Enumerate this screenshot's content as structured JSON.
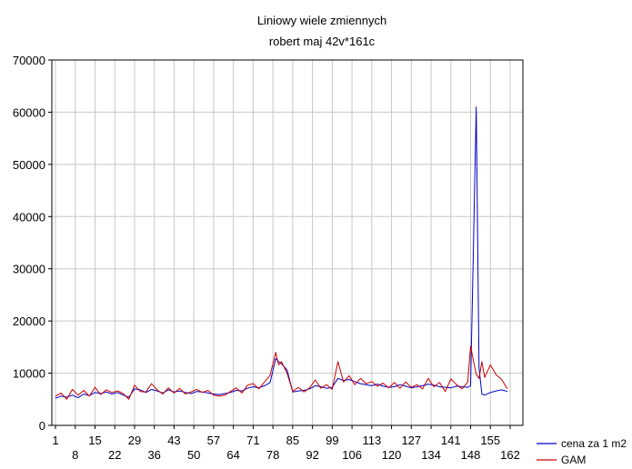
{
  "chart_data": {
    "type": "line",
    "title": "Liniowy   wiele zmiennych",
    "subtitle": "robert  maj 42v*161c",
    "ylim": [
      0,
      70000
    ],
    "y_ticks": [
      0,
      10000,
      20000,
      30000,
      40000,
      50000,
      60000,
      70000
    ],
    "x_range": [
      1,
      162
    ],
    "x_ticks_upper": [
      1,
      15,
      29,
      43,
      57,
      71,
      85,
      99,
      113,
      127,
      141,
      155
    ],
    "x_ticks_lower": [
      8,
      22,
      36,
      50,
      64,
      78,
      92,
      106,
      120,
      134,
      148,
      162
    ],
    "x_tick_labels_upper": [
      "1",
      "15",
      "29",
      "43",
      "57",
      "71",
      "85",
      "99",
      "113",
      "127",
      "141",
      "155"
    ],
    "x_tick_labels_lower": [
      "8",
      "22",
      "36",
      "50",
      "64",
      "78",
      "92",
      "106",
      "120",
      "134",
      "148",
      "162"
    ],
    "y_tick_labels": [
      "0",
      "10000",
      "20000",
      "30000",
      "40000",
      "50000",
      "60000",
      "70000"
    ],
    "grid": true,
    "legend_placement": "bottom-right",
    "colors": {
      "series_1": "#0000c8",
      "series_2": "#c80000",
      "grid": "#c8c8c8",
      "frame": "#000000"
    },
    "series": [
      {
        "name": "cena za 1 m2",
        "x": [
          1,
          3,
          5,
          7,
          9,
          11,
          13,
          15,
          17,
          19,
          21,
          23,
          25,
          27,
          29,
          31,
          33,
          35,
          37,
          39,
          41,
          43,
          45,
          47,
          49,
          51,
          53,
          55,
          57,
          59,
          61,
          63,
          65,
          67,
          69,
          71,
          73,
          75,
          77,
          79,
          80,
          81,
          83,
          85,
          87,
          89,
          91,
          93,
          95,
          97,
          99,
          101,
          103,
          105,
          107,
          109,
          111,
          113,
          115,
          117,
          119,
          121,
          123,
          125,
          127,
          129,
          131,
          133,
          135,
          137,
          139,
          141,
          143,
          145,
          147,
          148,
          149,
          150,
          151,
          152,
          153,
          155,
          157,
          159,
          161
        ],
        "values": [
          5200,
          5600,
          5400,
          5800,
          5300,
          6000,
          5700,
          6300,
          6100,
          6400,
          6000,
          6300,
          5800,
          5400,
          7000,
          6800,
          6300,
          6900,
          6600,
          6200,
          6800,
          6400,
          6600,
          6300,
          6100,
          6500,
          6400,
          6200,
          6000,
          5900,
          6100,
          6300,
          6700,
          6600,
          7100,
          7400,
          7200,
          7600,
          8200,
          12800,
          12200,
          11800,
          10600,
          6400,
          6600,
          6700,
          7000,
          7600,
          7400,
          7100,
          7300,
          9000,
          8600,
          8800,
          8400,
          8000,
          7800,
          7600,
          7900,
          7500,
          7300,
          7400,
          7800,
          7500,
          7200,
          7400,
          7600,
          7900,
          7700,
          7400,
          7300,
          7200,
          7500,
          7400,
          7300,
          7600,
          34000,
          61000,
          11000,
          6000,
          5800,
          6300,
          6600,
          6800,
          6500
        ],
        "visible_points": 85
      },
      {
        "name": "GAM",
        "x": [
          1,
          3,
          5,
          7,
          9,
          11,
          13,
          15,
          17,
          19,
          21,
          23,
          25,
          27,
          29,
          31,
          33,
          35,
          37,
          39,
          41,
          43,
          45,
          47,
          49,
          51,
          53,
          55,
          57,
          59,
          61,
          63,
          65,
          67,
          69,
          71,
          73,
          75,
          77,
          79,
          80,
          81,
          83,
          85,
          87,
          89,
          91,
          93,
          95,
          97,
          99,
          101,
          103,
          105,
          107,
          109,
          111,
          113,
          115,
          117,
          119,
          121,
          123,
          125,
          127,
          129,
          131,
          133,
          135,
          137,
          139,
          141,
          143,
          145,
          147,
          148,
          149,
          150,
          151,
          152,
          153,
          155,
          157,
          159,
          161
        ],
        "values": [
          5600,
          6200,
          5000,
          6900,
          5800,
          6700,
          5600,
          7300,
          5900,
          6800,
          6300,
          6600,
          6100,
          5000,
          7700,
          6500,
          6400,
          8000,
          6800,
          6000,
          7200,
          6200,
          7100,
          6000,
          6400,
          6900,
          6300,
          6700,
          5800,
          5600,
          5800,
          6500,
          7200,
          6200,
          7700,
          8000,
          7000,
          8300,
          9600,
          14000,
          11600,
          12200,
          10000,
          6500,
          7300,
          6400,
          7200,
          8700,
          7100,
          7800,
          6900,
          12200,
          8300,
          9500,
          7800,
          9000,
          8000,
          8400,
          7500,
          8100,
          7200,
          8200,
          7100,
          8300,
          7300,
          7800,
          7000,
          9000,
          7400,
          8200,
          6500,
          8900,
          7800,
          7000,
          8300,
          15200,
          12400,
          9800,
          9000,
          12200,
          9200,
          11600,
          9700,
          8800,
          7000
        ],
        "visible_points": 85
      }
    ]
  }
}
